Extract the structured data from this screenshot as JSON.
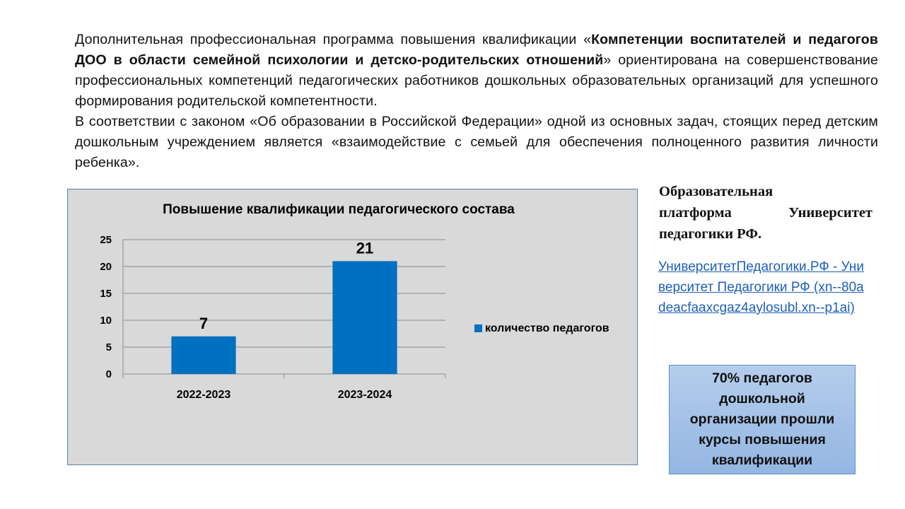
{
  "intro": {
    "part1": "Дополнительная профессиональная программа повышения квалификации «",
    "bold": "Компетенции воспитателей и педагогов ДОО в области семейной психологии и детско-родительских отношений",
    "part2": "» ориентирована на совершенствование профессиональных компетенций педагогических работников дошкольных образовательных организаций для успешного формирования родительской компетентности.",
    "part3": "В соответствии с законом «Об образовании в Российской Федерации» одной из основных задач, стоящих перед детским дошкольным учреждением является «взаимодействие с семьей для обеспечения полноценного развития личности ребенка»."
  },
  "chart_data": {
    "type": "bar",
    "title": "Повышение квалификации педагогического состава",
    "categories": [
      "2022-2023",
      "2023-2024"
    ],
    "series": [
      {
        "name": "количество педагогов",
        "values": [
          7,
          21
        ],
        "color": "#0070c0"
      }
    ],
    "data_labels": [
      "7",
      "21"
    ],
    "yticks": [
      "0",
      "5",
      "10",
      "15",
      "20",
      "25"
    ],
    "ylim": [
      0,
      25
    ],
    "grid": true,
    "legend": "right"
  },
  "platform": {
    "title_line1": "Образовательная",
    "title_line2a": "платформа",
    "title_line2b": "Университет",
    "title_line3": "педагогики РФ.",
    "link_text": "УниверситетПедагогики.РФ - Университет Педагогики РФ (xn--80adeacfaaxcgaz4aylosubl.xn--p1ai)"
  },
  "stat": {
    "text": "70% педагогов дошкольной организации прошли курсы повышения квалификации"
  }
}
